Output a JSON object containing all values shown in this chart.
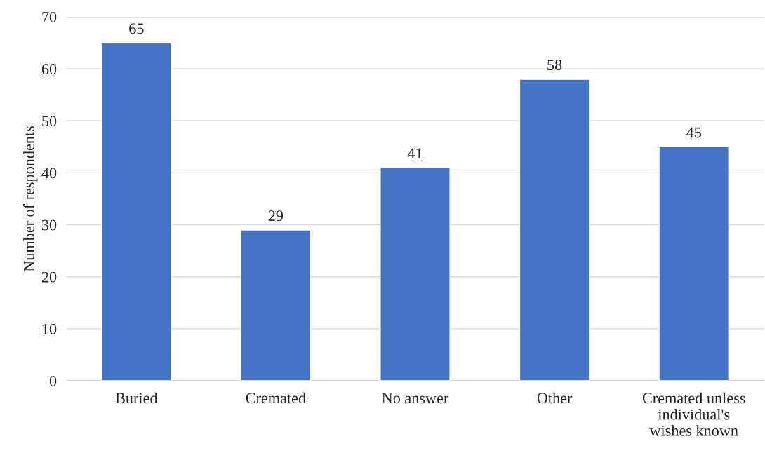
{
  "chart_data": {
    "type": "bar",
    "ylabel": "Number of respondents",
    "categories": [
      "Buried",
      "Cremated",
      "No answer",
      "Other",
      "Cremated unless individual's wishes known"
    ],
    "values": [
      65,
      29,
      41,
      58,
      45
    ],
    "color": "#4472c4",
    "ylim": [
      0,
      70
    ],
    "yticks": [
      0,
      10,
      20,
      30,
      40,
      50,
      60,
      70
    ],
    "grid": "y",
    "data_labels": true
  }
}
